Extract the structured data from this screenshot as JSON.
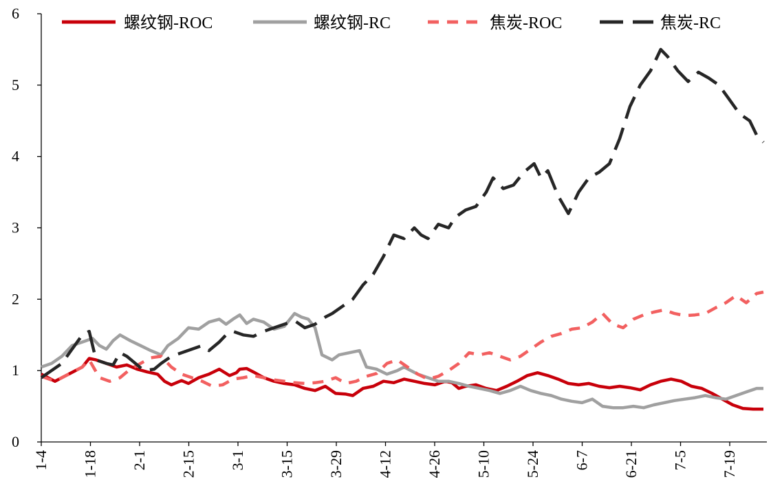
{
  "chart_data": {
    "type": "line",
    "title": "",
    "xlabel": "",
    "ylabel": "",
    "ylim": [
      0,
      6
    ],
    "yticks": [
      "0",
      "1",
      "2",
      "3",
      "4",
      "5",
      "6"
    ],
    "x_tick_labels": [
      "1-4",
      "1-18",
      "2-1",
      "2-15",
      "3-1",
      "3-15",
      "3-29",
      "4-12",
      "4-26",
      "5-10",
      "5-24",
      "6-7",
      "6-21",
      "7-5",
      "7-19"
    ],
    "grid": false,
    "legend_position": "top",
    "series": [
      {
        "name": "螺纹钢-ROC",
        "color": "#c8000a",
        "style": "solid",
        "points": [
          [
            0,
            0.95
          ],
          [
            4,
            0.85
          ],
          [
            8,
            0.95
          ],
          [
            12,
            1.05
          ],
          [
            14,
            1.17
          ],
          [
            16,
            1.15
          ],
          [
            19,
            1.1
          ],
          [
            22,
            1.05
          ],
          [
            25,
            1.08
          ],
          [
            28,
            1.02
          ],
          [
            31,
            0.98
          ],
          [
            34,
            0.95
          ],
          [
            36,
            0.85
          ],
          [
            38,
            0.8
          ],
          [
            41,
            0.86
          ],
          [
            43,
            0.82
          ],
          [
            46,
            0.9
          ],
          [
            49,
            0.95
          ],
          [
            52,
            1.02
          ],
          [
            55,
            0.93
          ],
          [
            57,
            0.97
          ],
          [
            58,
            1.02
          ],
          [
            60,
            1.03
          ],
          [
            62,
            0.98
          ],
          [
            65,
            0.9
          ],
          [
            68,
            0.85
          ],
          [
            71,
            0.82
          ],
          [
            74,
            0.8
          ],
          [
            77,
            0.75
          ],
          [
            80,
            0.72
          ],
          [
            83,
            0.78
          ],
          [
            86,
            0.68
          ],
          [
            89,
            0.67
          ],
          [
            91,
            0.65
          ],
          [
            94,
            0.75
          ],
          [
            97,
            0.78
          ],
          [
            100,
            0.85
          ],
          [
            103,
            0.83
          ],
          [
            106,
            0.88
          ],
          [
            109,
            0.85
          ],
          [
            112,
            0.82
          ],
          [
            115,
            0.8
          ],
          [
            118,
            0.85
          ],
          [
            120,
            0.83
          ],
          [
            122,
            0.75
          ],
          [
            124,
            0.78
          ],
          [
            127,
            0.8
          ],
          [
            130,
            0.75
          ],
          [
            133,
            0.72
          ],
          [
            136,
            0.78
          ],
          [
            139,
            0.85
          ],
          [
            142,
            0.93
          ],
          [
            145,
            0.97
          ],
          [
            148,
            0.93
          ],
          [
            151,
            0.88
          ],
          [
            154,
            0.82
          ],
          [
            157,
            0.8
          ],
          [
            160,
            0.82
          ],
          [
            163,
            0.78
          ],
          [
            166,
            0.76
          ],
          [
            169,
            0.78
          ],
          [
            172,
            0.76
          ],
          [
            175,
            0.73
          ],
          [
            178,
            0.8
          ],
          [
            181,
            0.85
          ],
          [
            184,
            0.88
          ],
          [
            187,
            0.85
          ],
          [
            190,
            0.78
          ],
          [
            193,
            0.75
          ],
          [
            196,
            0.68
          ],
          [
            199,
            0.6
          ],
          [
            202,
            0.52
          ],
          [
            205,
            0.47
          ],
          [
            208,
            0.46
          ],
          [
            211,
            0.46
          ]
        ]
      },
      {
        "name": "螺纹钢-RC",
        "color": "#a0a0a0",
        "style": "solid",
        "points": [
          [
            0,
            1.05
          ],
          [
            3,
            1.1
          ],
          [
            6,
            1.2
          ],
          [
            9,
            1.35
          ],
          [
            12,
            1.4
          ],
          [
            15,
            1.45
          ],
          [
            17,
            1.35
          ],
          [
            19,
            1.3
          ],
          [
            21,
            1.42
          ],
          [
            23,
            1.5
          ],
          [
            26,
            1.42
          ],
          [
            29,
            1.35
          ],
          [
            32,
            1.28
          ],
          [
            35,
            1.22
          ],
          [
            37,
            1.35
          ],
          [
            40,
            1.45
          ],
          [
            43,
            1.6
          ],
          [
            46,
            1.58
          ],
          [
            49,
            1.68
          ],
          [
            52,
            1.72
          ],
          [
            54,
            1.65
          ],
          [
            56,
            1.72
          ],
          [
            58,
            1.78
          ],
          [
            60,
            1.66
          ],
          [
            62,
            1.72
          ],
          [
            65,
            1.68
          ],
          [
            68,
            1.58
          ],
          [
            71,
            1.62
          ],
          [
            74,
            1.8
          ],
          [
            76,
            1.75
          ],
          [
            78,
            1.72
          ],
          [
            80,
            1.6
          ],
          [
            82,
            1.22
          ],
          [
            85,
            1.15
          ],
          [
            87,
            1.22
          ],
          [
            90,
            1.25
          ],
          [
            93,
            1.28
          ],
          [
            95,
            1.05
          ],
          [
            98,
            1.02
          ],
          [
            101,
            0.95
          ],
          [
            104,
            1.0
          ],
          [
            106,
            1.05
          ],
          [
            108,
            1.0
          ],
          [
            110,
            0.95
          ],
          [
            113,
            0.9
          ],
          [
            116,
            0.85
          ],
          [
            119,
            0.85
          ],
          [
            122,
            0.82
          ],
          [
            125,
            0.78
          ],
          [
            128,
            0.75
          ],
          [
            131,
            0.72
          ],
          [
            134,
            0.68
          ],
          [
            137,
            0.72
          ],
          [
            140,
            0.78
          ],
          [
            143,
            0.72
          ],
          [
            146,
            0.68
          ],
          [
            149,
            0.65
          ],
          [
            152,
            0.6
          ],
          [
            155,
            0.57
          ],
          [
            158,
            0.55
          ],
          [
            161,
            0.6
          ],
          [
            164,
            0.5
          ],
          [
            167,
            0.48
          ],
          [
            170,
            0.48
          ],
          [
            173,
            0.5
          ],
          [
            176,
            0.48
          ],
          [
            179,
            0.52
          ],
          [
            182,
            0.55
          ],
          [
            185,
            0.58
          ],
          [
            188,
            0.6
          ],
          [
            191,
            0.62
          ],
          [
            194,
            0.65
          ],
          [
            197,
            0.62
          ],
          [
            200,
            0.6
          ],
          [
            203,
            0.65
          ],
          [
            206,
            0.7
          ],
          [
            209,
            0.75
          ],
          [
            211,
            0.75
          ]
        ]
      },
      {
        "name": "焦炭-ROC",
        "color": "#f26060",
        "style": "dashed",
        "points": [
          [
            0,
            0.92
          ],
          [
            4,
            0.85
          ],
          [
            8,
            0.95
          ],
          [
            12,
            1.05
          ],
          [
            14,
            1.15
          ],
          [
            17,
            0.9
          ],
          [
            20,
            0.85
          ],
          [
            23,
            0.9
          ],
          [
            26,
            1.02
          ],
          [
            29,
            1.1
          ],
          [
            32,
            1.18
          ],
          [
            35,
            1.2
          ],
          [
            38,
            1.05
          ],
          [
            41,
            0.95
          ],
          [
            44,
            0.9
          ],
          [
            47,
            0.85
          ],
          [
            50,
            0.78
          ],
          [
            53,
            0.8
          ],
          [
            56,
            0.88
          ],
          [
            59,
            0.9
          ],
          [
            62,
            0.93
          ],
          [
            65,
            0.9
          ],
          [
            68,
            0.87
          ],
          [
            71,
            0.85
          ],
          [
            74,
            0.83
          ],
          [
            77,
            0.82
          ],
          [
            80,
            0.83
          ],
          [
            83,
            0.85
          ],
          [
            86,
            0.9
          ],
          [
            89,
            0.82
          ],
          [
            92,
            0.85
          ],
          [
            95,
            0.92
          ],
          [
            98,
            0.96
          ],
          [
            101,
            1.1
          ],
          [
            104,
            1.15
          ],
          [
            107,
            1.05
          ],
          [
            110,
            0.95
          ],
          [
            113,
            0.88
          ],
          [
            116,
            0.92
          ],
          [
            119,
            1.0
          ],
          [
            122,
            1.1
          ],
          [
            125,
            1.25
          ],
          [
            128,
            1.22
          ],
          [
            131,
            1.25
          ],
          [
            134,
            1.2
          ],
          [
            137,
            1.15
          ],
          [
            140,
            1.2
          ],
          [
            143,
            1.3
          ],
          [
            146,
            1.4
          ],
          [
            149,
            1.48
          ],
          [
            152,
            1.52
          ],
          [
            155,
            1.58
          ],
          [
            158,
            1.6
          ],
          [
            161,
            1.68
          ],
          [
            164,
            1.8
          ],
          [
            167,
            1.65
          ],
          [
            170,
            1.6
          ],
          [
            173,
            1.72
          ],
          [
            176,
            1.78
          ],
          [
            179,
            1.82
          ],
          [
            182,
            1.85
          ],
          [
            185,
            1.8
          ],
          [
            188,
            1.77
          ],
          [
            191,
            1.78
          ],
          [
            194,
            1.8
          ],
          [
            197,
            1.88
          ],
          [
            200,
            1.95
          ],
          [
            203,
            2.05
          ],
          [
            206,
            1.95
          ],
          [
            209,
            2.08
          ],
          [
            211,
            2.1
          ]
        ]
      },
      {
        "name": "焦炭-RC",
        "color": "#262626",
        "style": "dashed",
        "points": [
          [
            0,
            0.9
          ],
          [
            3,
            1.0
          ],
          [
            6,
            1.1
          ],
          [
            9,
            1.3
          ],
          [
            12,
            1.5
          ],
          [
            14,
            1.55
          ],
          [
            16,
            1.15
          ],
          [
            19,
            1.1
          ],
          [
            21,
            1.08
          ],
          [
            23,
            1.25
          ],
          [
            25,
            1.2
          ],
          [
            27,
            1.12
          ],
          [
            30,
            1.0
          ],
          [
            33,
            1.02
          ],
          [
            35,
            1.1
          ],
          [
            38,
            1.2
          ],
          [
            41,
            1.25
          ],
          [
            44,
            1.3
          ],
          [
            47,
            1.35
          ],
          [
            49,
            1.28
          ],
          [
            52,
            1.4
          ],
          [
            54,
            1.5
          ],
          [
            56,
            1.55
          ],
          [
            59,
            1.5
          ],
          [
            62,
            1.48
          ],
          [
            65,
            1.55
          ],
          [
            68,
            1.6
          ],
          [
            71,
            1.65
          ],
          [
            74,
            1.7
          ],
          [
            77,
            1.6
          ],
          [
            80,
            1.65
          ],
          [
            83,
            1.75
          ],
          [
            85,
            1.8
          ],
          [
            88,
            1.9
          ],
          [
            91,
            2.0
          ],
          [
            94,
            2.2
          ],
          [
            97,
            2.35
          ],
          [
            100,
            2.6
          ],
          [
            103,
            2.9
          ],
          [
            106,
            2.85
          ],
          [
            109,
            3.0
          ],
          [
            111,
            2.9
          ],
          [
            113,
            2.85
          ],
          [
            116,
            3.05
          ],
          [
            119,
            3.0
          ],
          [
            121,
            3.15
          ],
          [
            124,
            3.25
          ],
          [
            127,
            3.3
          ],
          [
            130,
            3.5
          ],
          [
            132,
            3.7
          ],
          [
            135,
            3.55
          ],
          [
            138,
            3.6
          ],
          [
            141,
            3.78
          ],
          [
            144,
            3.9
          ],
          [
            146,
            3.7
          ],
          [
            148,
            3.8
          ],
          [
            151,
            3.45
          ],
          [
            154,
            3.2
          ],
          [
            157,
            3.5
          ],
          [
            160,
            3.7
          ],
          [
            163,
            3.78
          ],
          [
            166,
            3.9
          ],
          [
            169,
            4.25
          ],
          [
            172,
            4.7
          ],
          [
            175,
            5.0
          ],
          [
            178,
            5.2
          ],
          [
            181,
            5.5
          ],
          [
            183,
            5.4
          ],
          [
            186,
            5.2
          ],
          [
            189,
            5.05
          ],
          [
            192,
            5.18
          ],
          [
            195,
            5.1
          ],
          [
            198,
            5.0
          ],
          [
            201,
            4.8
          ],
          [
            204,
            4.6
          ],
          [
            207,
            4.5
          ],
          [
            209,
            4.3
          ],
          [
            211,
            4.2
          ]
        ]
      }
    ]
  }
}
